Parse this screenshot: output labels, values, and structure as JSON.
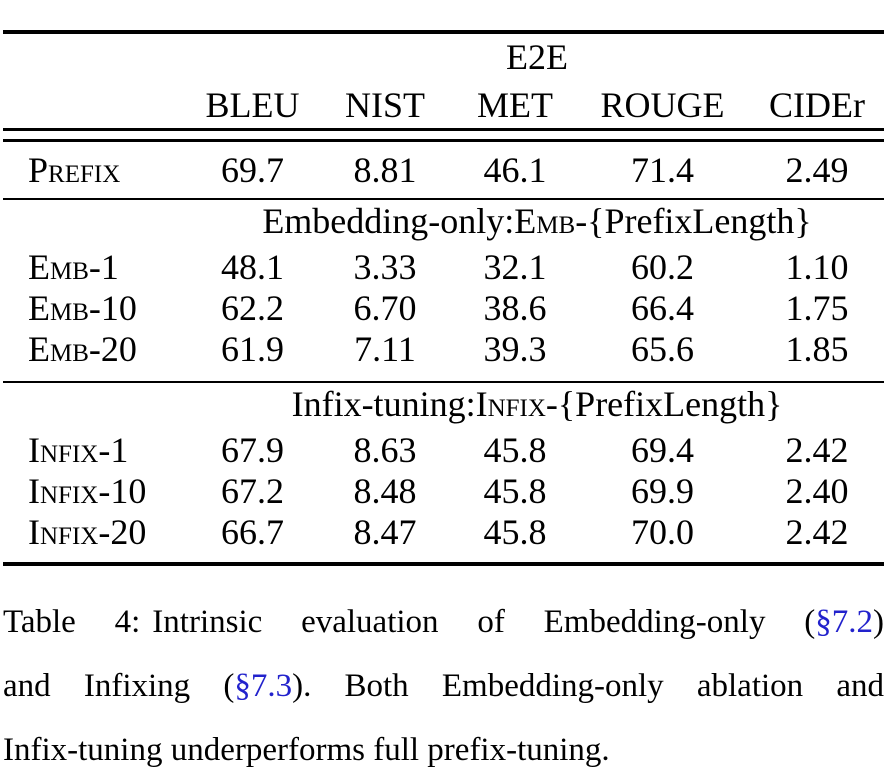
{
  "table": {
    "dataset_header": "E2E",
    "columns": [
      "BLEU",
      "NIST",
      "MET",
      "ROUGE",
      "CIDEr"
    ],
    "prefix_row": {
      "label": "Prefix",
      "values": [
        "69.7",
        "8.81",
        "46.1",
        "71.4",
        "2.49"
      ]
    },
    "sections": [
      {
        "title_lead": "Embedding-only: ",
        "title_sc": "Emb",
        "title_tail": "-{PrefixLength}",
        "rows": [
          {
            "label": "Emb-1",
            "values": [
              "48.1",
              "3.33",
              "32.1",
              "60.2",
              "1.10"
            ]
          },
          {
            "label": "Emb-10",
            "values": [
              "62.2",
              "6.70",
              "38.6",
              "66.4",
              "1.75"
            ]
          },
          {
            "label": "Emb-20",
            "values": [
              "61.9",
              "7.11",
              "39.3",
              "65.6",
              "1.85"
            ]
          }
        ]
      },
      {
        "title_lead": "Infix-tuning: ",
        "title_sc": "Infix",
        "title_tail": "-{PrefixLength}",
        "rows": [
          {
            "label": "Infix-1",
            "values": [
              "67.9",
              "8.63",
              "45.8",
              "69.4",
              "2.42"
            ]
          },
          {
            "label": "Infix-10",
            "values": [
              "67.2",
              "8.48",
              "45.8",
              "69.9",
              "2.40"
            ]
          },
          {
            "label": "Infix-20",
            "values": [
              "66.7",
              "8.47",
              "45.8",
              "70.0",
              "2.42"
            ]
          }
        ]
      }
    ]
  },
  "caption": {
    "label": "Table 4:",
    "line1_text": "Intrinsic evaluation of Embedding-only (",
    "link1": "§7.2",
    "line1_end": ")",
    "line2_start": "and Infixing (",
    "link2": "§7.3",
    "line2_end": "). Both Embedding-only ablation and",
    "line3": "Infix-tuning underperforms full prefix-tuning."
  },
  "colors": {
    "text": "#000000",
    "rule": "#000000",
    "link": "#2222CC",
    "background": "#ffffff"
  }
}
